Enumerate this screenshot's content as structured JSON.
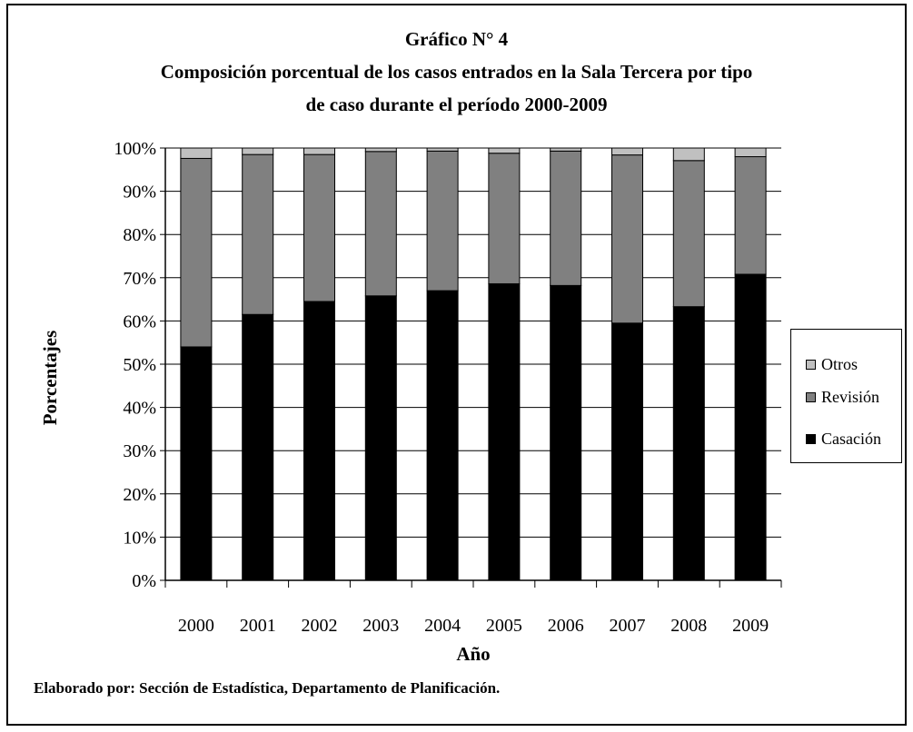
{
  "chart_data": {
    "type": "bar",
    "stacked": true,
    "percent_stacked": true,
    "title_lines": [
      "Gráfico N° 4",
      "Composición porcentual de los casos entrados en la Sala Tercera por tipo",
      "de caso durante el período 2000-2009"
    ],
    "xlabel": "Año",
    "ylabel": "Porcentajes",
    "ylim": [
      0,
      100
    ],
    "y_ticks": [
      "0%",
      "10%",
      "20%",
      "30%",
      "40%",
      "50%",
      "60%",
      "70%",
      "80%",
      "90%",
      "100%"
    ],
    "categories": [
      "2000",
      "2001",
      "2002",
      "2003",
      "2004",
      "2005",
      "2006",
      "2007",
      "2008",
      "2009"
    ],
    "grid": true,
    "legend_position": "right",
    "series": [
      {
        "name": "Casación",
        "color": "#000000",
        "values": [
          54,
          61.5,
          64.5,
          65.8,
          67,
          68.6,
          68.2,
          59.5,
          63.3,
          70.8
        ]
      },
      {
        "name": "Revisión",
        "color": "#808080",
        "values": [
          43.6,
          37,
          34,
          33.4,
          32.3,
          30.2,
          31.1,
          38.9,
          33.8,
          27.2
        ]
      },
      {
        "name": "Otros",
        "color": "#c0c0c0",
        "values": [
          2.4,
          1.5,
          1.5,
          0.8,
          0.7,
          1.2,
          0.7,
          1.6,
          2.9,
          2.0
        ]
      }
    ]
  },
  "source_note": "Elaborado por: Sección de Estadística, Departamento de Planificación."
}
